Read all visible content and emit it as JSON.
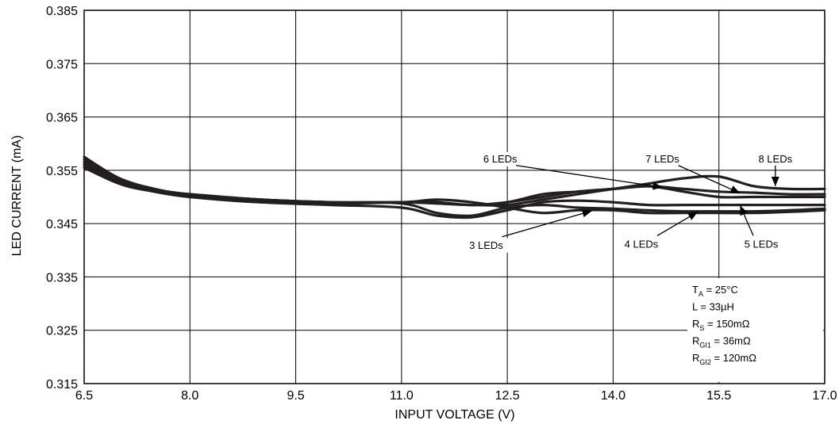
{
  "chart_data": {
    "type": "line",
    "xlabel": "INPUT VOLTAGE (V)",
    "ylabel": "LED CURRENT (mA)",
    "xlim": [
      6.5,
      17.0
    ],
    "ylim": [
      0.315,
      0.385
    ],
    "x_ticks": [
      "6.5",
      "8.0",
      "9.5",
      "11.0",
      "12.5",
      "14.0",
      "15.5",
      "17.0"
    ],
    "y_ticks": [
      "0.385",
      "0.375",
      "0.365",
      "0.355",
      "0.345",
      "0.335",
      "0.325",
      "0.315"
    ],
    "grid": true,
    "series": [
      {
        "name": "3 LEDs",
        "x": [
          6.5,
          7.0,
          7.5,
          8.0,
          9.0,
          10.0,
          11.0,
          11.5,
          12.0,
          12.5,
          13.0,
          13.5,
          14.0,
          14.5,
          15.0,
          15.5,
          16.0,
          16.5,
          17.0
        ],
        "y": [
          0.3575,
          0.3535,
          0.3515,
          0.3505,
          0.3495,
          0.349,
          0.349,
          0.3495,
          0.349,
          0.348,
          0.347,
          0.3475,
          0.3475,
          0.347,
          0.347,
          0.347,
          0.347,
          0.3472,
          0.3475
        ]
      },
      {
        "name": "4 LEDs",
        "x": [
          6.5,
          7.0,
          7.5,
          8.0,
          9.0,
          10.0,
          11.0,
          11.5,
          12.0,
          12.5,
          13.0,
          13.5,
          14.0,
          14.5,
          15.0,
          15.5,
          16.0,
          16.5,
          17.0
        ],
        "y": [
          0.357,
          0.353,
          0.351,
          0.3505,
          0.3495,
          0.349,
          0.3488,
          0.347,
          0.3465,
          0.348,
          0.3485,
          0.348,
          0.3478,
          0.3475,
          0.3473,
          0.3473,
          0.3473,
          0.3475,
          0.3478
        ]
      },
      {
        "name": "5 LEDs",
        "x": [
          6.5,
          7.0,
          7.5,
          8.0,
          9.0,
          10.0,
          11.0,
          11.5,
          12.0,
          12.5,
          13.0,
          13.5,
          14.0,
          14.5,
          15.0,
          15.5,
          16.0,
          16.5,
          17.0
        ],
        "y": [
          0.356,
          0.3525,
          0.351,
          0.35,
          0.349,
          0.3485,
          0.348,
          0.3465,
          0.3462,
          0.3475,
          0.349,
          0.3493,
          0.349,
          0.3485,
          0.3485,
          0.3485,
          0.3485,
          0.3485,
          0.3485
        ]
      },
      {
        "name": "6 LEDs",
        "x": [
          6.5,
          7.0,
          7.5,
          8.0,
          9.0,
          10.0,
          11.0,
          11.5,
          12.0,
          12.5,
          13.0,
          13.5,
          14.0,
          14.5,
          15.0,
          15.5,
          16.0,
          16.5,
          17.0
        ],
        "y": [
          0.3565,
          0.353,
          0.351,
          0.3502,
          0.3492,
          0.3488,
          0.349,
          0.349,
          0.3485,
          0.349,
          0.3505,
          0.351,
          0.3515,
          0.352,
          0.351,
          0.35,
          0.35,
          0.35,
          0.35
        ]
      },
      {
        "name": "7 LEDs",
        "x": [
          6.5,
          7.0,
          7.5,
          8.0,
          9.0,
          10.0,
          11.0,
          11.5,
          12.0,
          12.5,
          13.0,
          13.5,
          14.0,
          14.5,
          15.0,
          15.5,
          16.0,
          16.5,
          17.0
        ],
        "y": [
          0.3555,
          0.3525,
          0.351,
          0.35,
          0.349,
          0.3488,
          0.349,
          0.3488,
          0.3485,
          0.349,
          0.35,
          0.351,
          0.3515,
          0.352,
          0.3515,
          0.351,
          0.3508,
          0.3505,
          0.3505
        ]
      },
      {
        "name": "8 LEDs",
        "x": [
          6.5,
          7.0,
          7.5,
          8.0,
          9.0,
          10.0,
          11.0,
          11.5,
          12.0,
          12.5,
          13.0,
          13.5,
          14.0,
          14.5,
          15.0,
          15.5,
          16.0,
          16.5,
          17.0
        ],
        "y": [
          0.356,
          0.3528,
          0.3512,
          0.3505,
          0.3495,
          0.349,
          0.349,
          0.3488,
          0.3485,
          0.3485,
          0.3495,
          0.3505,
          0.3515,
          0.3525,
          0.3535,
          0.3538,
          0.352,
          0.3515,
          0.3515
        ]
      }
    ],
    "annotations": [
      {
        "text": "3 LEDs",
        "x": 12.2,
        "y": 0.3403,
        "arrow_to": [
          13.7,
          0.3474
        ]
      },
      {
        "text": "4 LEDs",
        "x": 14.4,
        "y": 0.3405,
        "arrow_to": [
          15.2,
          0.3472
        ]
      },
      {
        "text": "5 LEDs",
        "x": 16.1,
        "y": 0.3405,
        "arrow_to": [
          15.8,
          0.3484
        ]
      },
      {
        "text": "6 LEDs",
        "x": 12.4,
        "y": 0.3565,
        "arrow_to": [
          14.7,
          0.3518
        ]
      },
      {
        "text": "7 LEDs",
        "x": 14.7,
        "y": 0.3565,
        "arrow_to": [
          15.8,
          0.3507
        ]
      },
      {
        "text": "8 LEDs",
        "x": 16.3,
        "y": 0.3565,
        "arrow_to": [
          16.3,
          0.352
        ]
      }
    ],
    "conditions": [
      {
        "main": "T",
        "sub": "A",
        "rest": " = 25°C"
      },
      {
        "main": "L = 33µH",
        "sub": "",
        "rest": ""
      },
      {
        "main": "R",
        "sub": "S",
        "rest": " = 150mΩ"
      },
      {
        "main": "R",
        "sub": "GI1",
        "rest": " = 36mΩ"
      },
      {
        "main": "R",
        "sub": "GI2",
        "rest": " = 120mΩ"
      }
    ],
    "line_color": "#231f20"
  }
}
